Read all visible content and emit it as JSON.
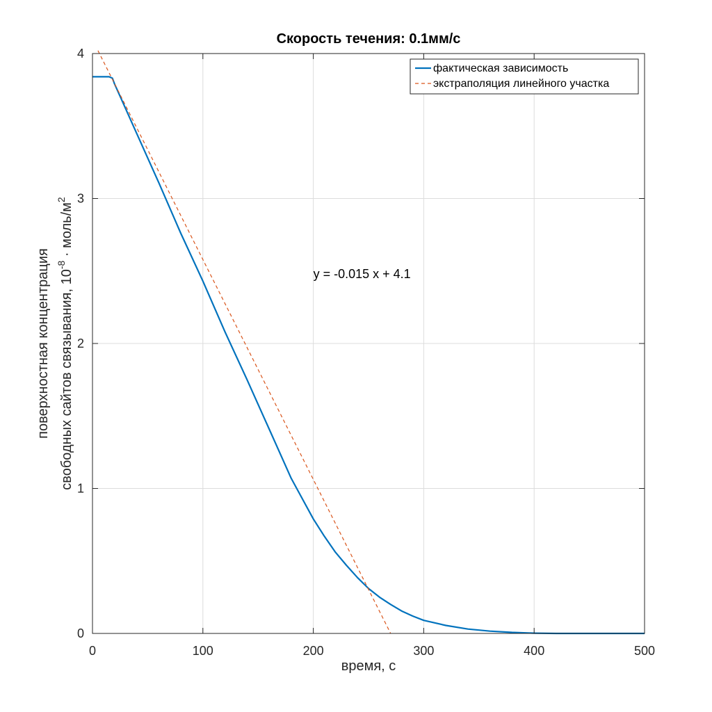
{
  "chart_data": {
    "type": "line",
    "title": "Скорость течения: 0.1мм/с",
    "xlabel": "время, с",
    "ylabel_line1": "поверхностная концентрация",
    "ylabel_line2_prefix": "свободных сайтов связывания, 10",
    "ylabel_exp1": "-8",
    "ylabel_mid": " · моль/м",
    "ylabel_exp2": "2",
    "xlim": [
      0,
      500
    ],
    "ylim": [
      0,
      4
    ],
    "xticks": [
      "0",
      "100",
      "200",
      "300",
      "400",
      "500"
    ],
    "yticks": [
      "0",
      "1",
      "2",
      "3",
      "4"
    ],
    "grid": true,
    "legend_position": "top-right",
    "annotation": {
      "text": "y = -0.015 x + 4.1",
      "x": 200,
      "y": 2.48
    },
    "series": [
      {
        "name": "фактическая зависимость",
        "color": "#0072bd",
        "style": "solid",
        "x": [
          0,
          15,
          18,
          20,
          40,
          60,
          80,
          100,
          120,
          140,
          160,
          180,
          190,
          200,
          210,
          220,
          230,
          240,
          250,
          260,
          270,
          280,
          290,
          300,
          320,
          340,
          360,
          380,
          400,
          420,
          450,
          500
        ],
        "y": [
          3.84,
          3.84,
          3.83,
          3.79,
          3.45,
          3.11,
          2.76,
          2.43,
          2.08,
          1.75,
          1.41,
          1.07,
          0.93,
          0.79,
          0.67,
          0.56,
          0.47,
          0.385,
          0.31,
          0.25,
          0.2,
          0.155,
          0.12,
          0.09,
          0.055,
          0.03,
          0.016,
          0.007,
          0.002,
          0.0,
          0.0,
          0.0
        ]
      },
      {
        "name": "экстраполяция линейного участка",
        "color": "#d95319",
        "style": "dashed",
        "x": [
          5,
          270
        ],
        "y": [
          4.02,
          0.0
        ]
      }
    ]
  }
}
